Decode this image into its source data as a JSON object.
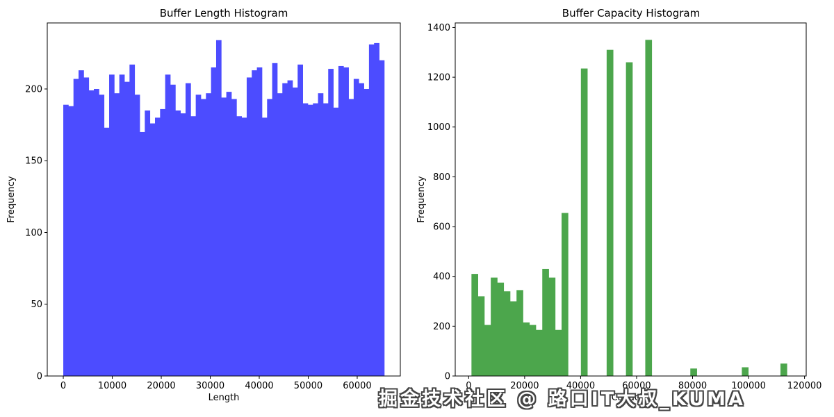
{
  "page": {
    "background": "#ffffff"
  },
  "watermark": {
    "text": "掘金技术社区 @ 路口IT大叔_KUMA"
  },
  "chart_data": [
    {
      "type": "bar",
      "title": "Buffer Length Histogram",
      "xlabel": "Length",
      "ylabel": "Frequency",
      "bar_color": "#4c4cff",
      "grid": false,
      "legend": null,
      "xlim": [
        -3270,
        68800
      ],
      "ylim": [
        0,
        246
      ],
      "xticks": [
        0,
        10000,
        20000,
        30000,
        40000,
        50000,
        60000
      ],
      "yticks": [
        0,
        50,
        100,
        150,
        200
      ],
      "bin_start": 0,
      "bin_width": 1040,
      "values": [
        189,
        188,
        207,
        213,
        208,
        199,
        200,
        196,
        173,
        210,
        197,
        210,
        205,
        217,
        196,
        170,
        185,
        176,
        180,
        186,
        210,
        203,
        185,
        183,
        204,
        181,
        196,
        193,
        197,
        215,
        234,
        194,
        198,
        193,
        181,
        180,
        208,
        213,
        215,
        180,
        193,
        218,
        197,
        204,
        206,
        201,
        217,
        190,
        189,
        190,
        197,
        190,
        214,
        187,
        216,
        215,
        193,
        207,
        204,
        200,
        231,
        232,
        220
      ]
    },
    {
      "type": "bar",
      "title": "Buffer Capacity Histogram",
      "xlabel": "Capacity",
      "ylabel": "Frequency",
      "bar_color": "#4ca64c",
      "grid": false,
      "legend": null,
      "xlim": [
        -4800,
        120600
      ],
      "ylim": [
        0,
        1418
      ],
      "xticks": [
        0,
        20000,
        40000,
        60000,
        80000,
        100000,
        120000
      ],
      "yticks": [
        0,
        200,
        400,
        600,
        800,
        1000,
        1200,
        1400
      ],
      "bin_start": 1000,
      "bin_width": 2300,
      "values": [
        410,
        320,
        205,
        395,
        375,
        340,
        300,
        345,
        215,
        205,
        185,
        430,
        395,
        185,
        655,
        0,
        0,
        1235,
        0,
        0,
        0,
        1310,
        0,
        0,
        1260,
        0,
        0,
        1350,
        0,
        0,
        0,
        0,
        0,
        0,
        30,
        0,
        0,
        0,
        0,
        0,
        0,
        0,
        35,
        0,
        0,
        0,
        0,
        0,
        50,
        0
      ]
    }
  ]
}
